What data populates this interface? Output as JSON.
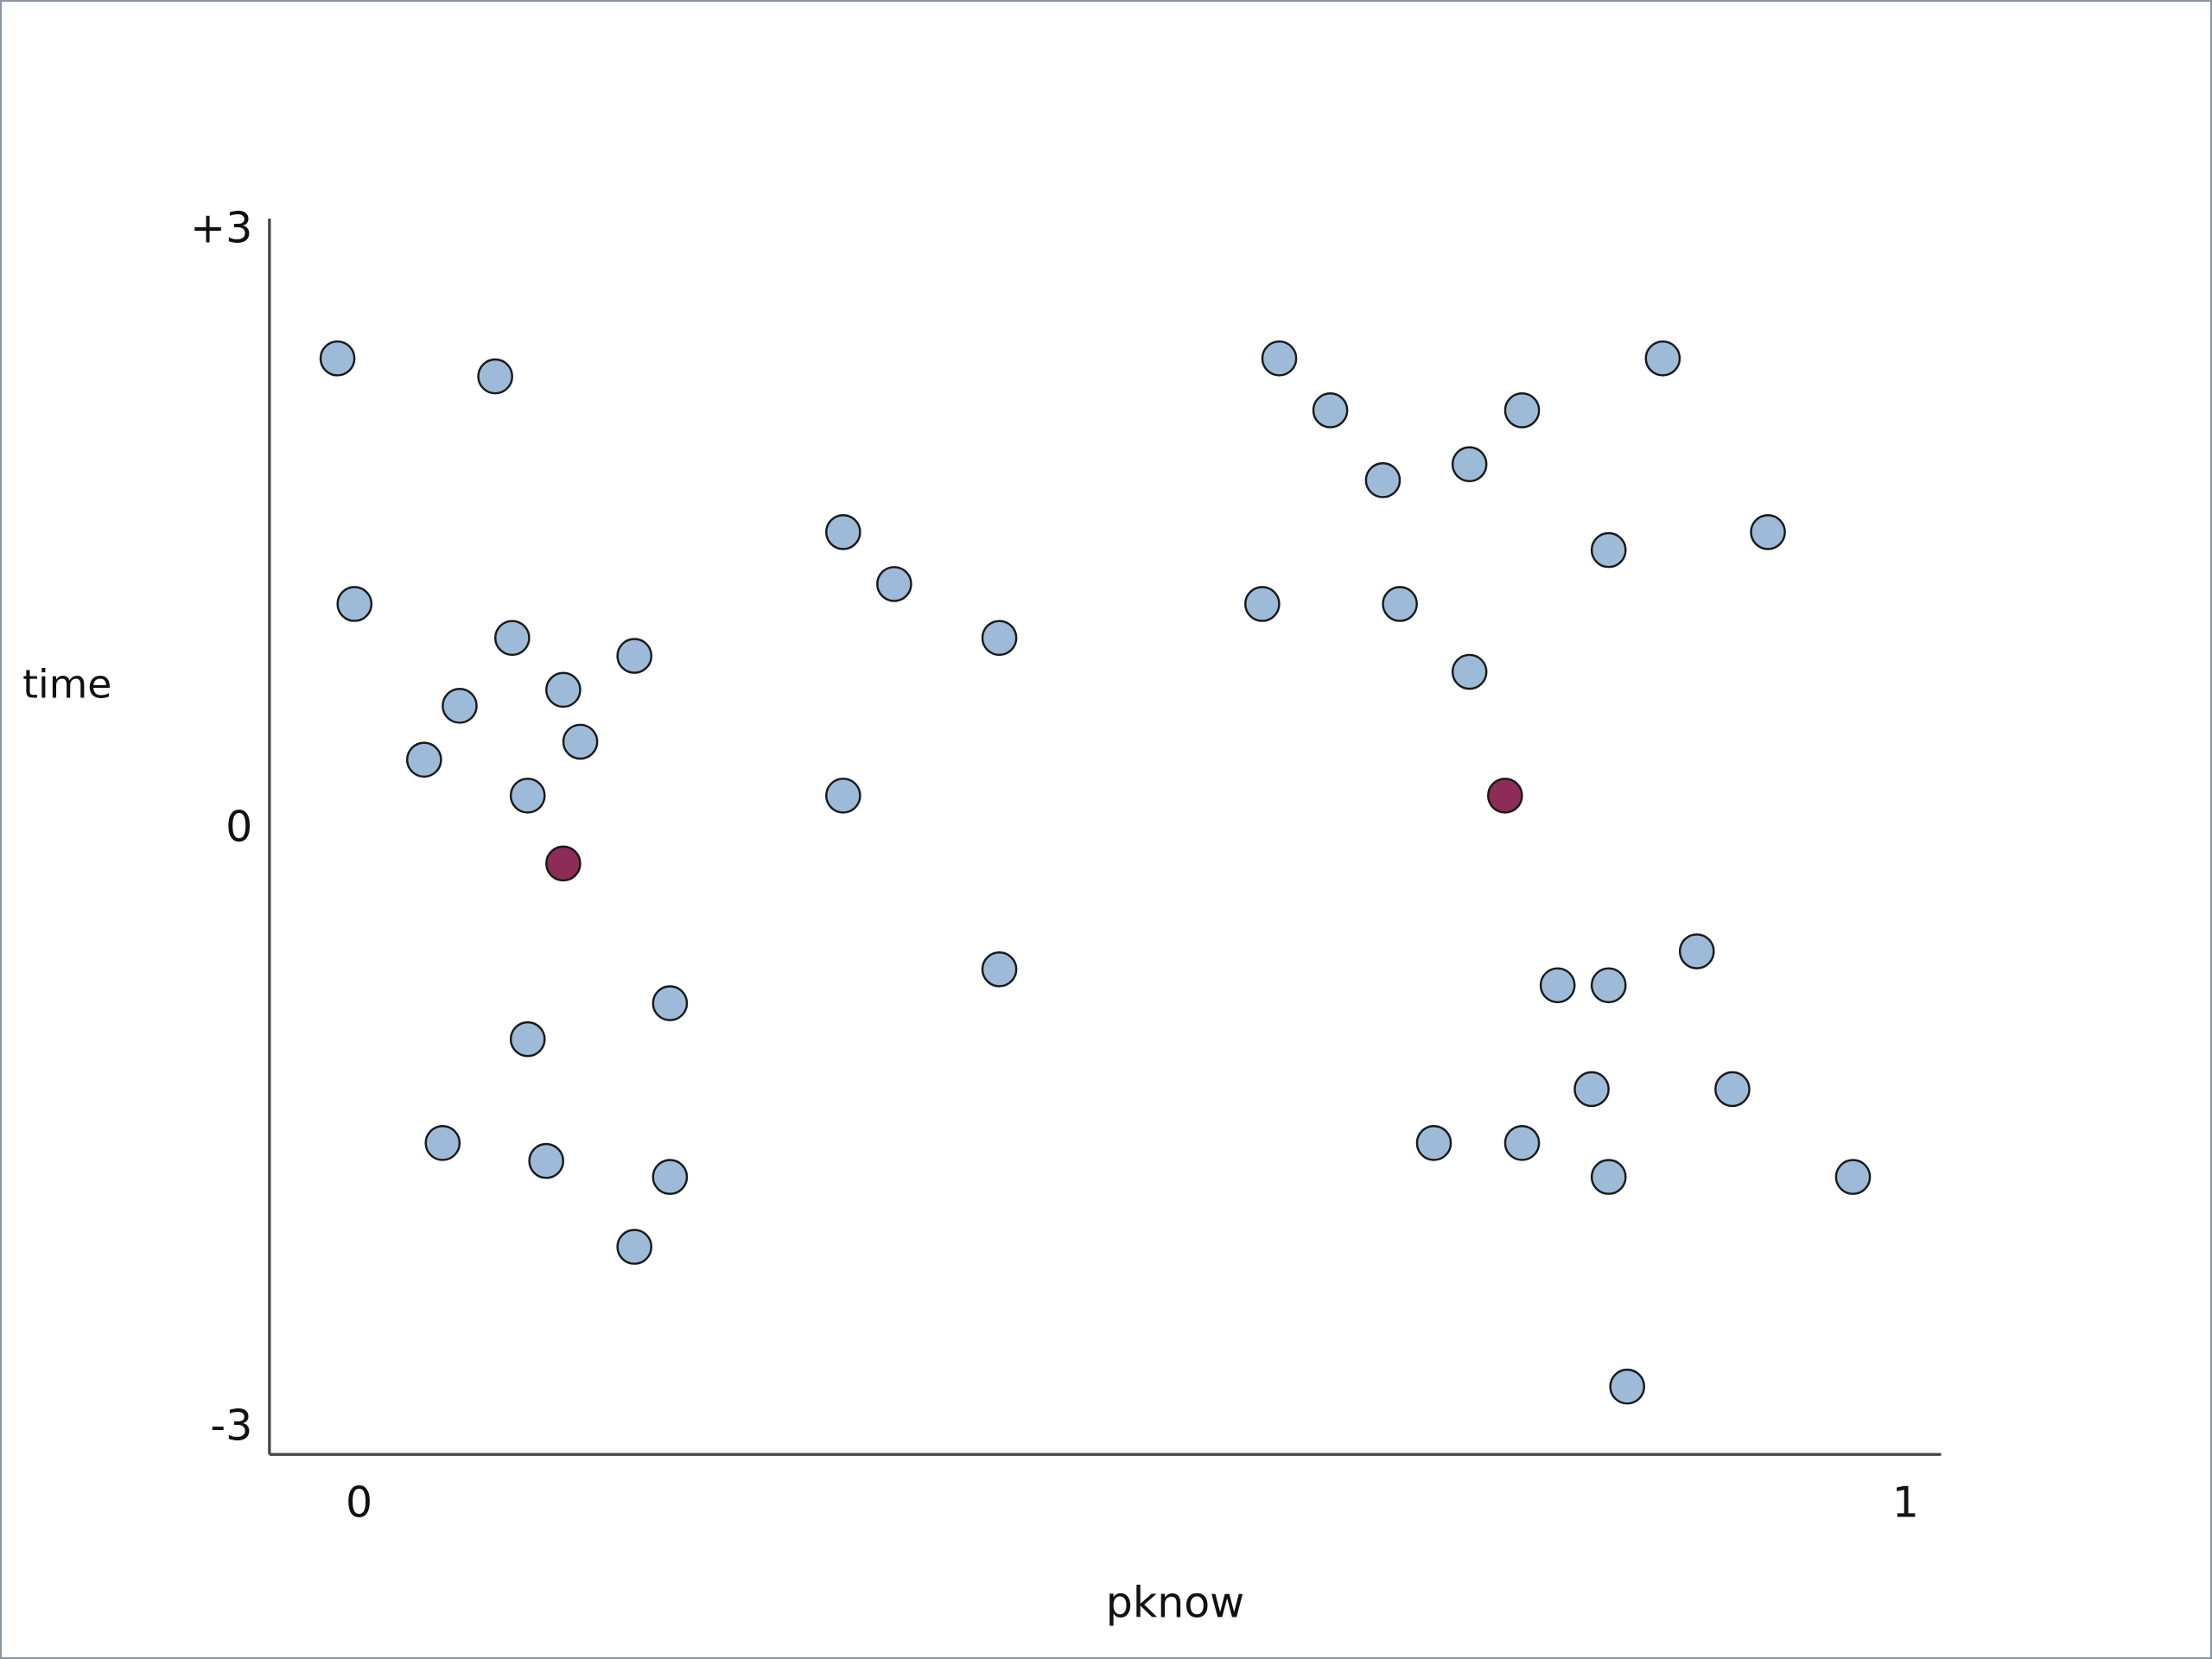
{
  "chart_data": {
    "type": "scatter",
    "x_label": "pknow",
    "y_label": "time",
    "xlim": [
      -0.058,
      1.023
    ],
    "ylim": [
      -3.13,
      3.06
    ],
    "xticks": [
      0,
      1
    ],
    "yticks": [
      {
        "value": 3,
        "label": "+3"
      },
      0,
      -3
    ],
    "series": [
      {
        "color": "#9dbbd8",
        "x": [
          -0.014,
          0.088,
          -0.003,
          0.099,
          0.178,
          0.065,
          0.132,
          0.143,
          0.042,
          0.109,
          0.313,
          0.346,
          0.414,
          0.313,
          0.414,
          0.201,
          0.109,
          0.054,
          0.121,
          0.201,
          0.178,
          0.595,
          0.628,
          0.752,
          0.843,
          0.662,
          0.718,
          0.808,
          0.911,
          0.584,
          0.673,
          0.718,
          0.865,
          0.775,
          0.808,
          0.797,
          0.888,
          0.695,
          0.752,
          0.808,
          0.966,
          0.82
        ],
        "values": [
          2.36,
          2.27,
          1.13,
          0.96,
          0.87,
          0.62,
          0.7,
          0.44,
          0.35,
          0.17,
          1.49,
          1.23,
          0.96,
          0.17,
          -0.7,
          -0.87,
          -1.05,
          -1.57,
          -1.66,
          -1.74,
          -2.09,
          2.36,
          2.1,
          2.1,
          2.36,
          1.75,
          1.83,
          1.4,
          1.49,
          1.13,
          1.13,
          0.79,
          -0.61,
          -0.78,
          -0.78,
          -1.3,
          -1.3,
          -1.57,
          -1.57,
          -1.74,
          -1.74,
          -2.79
        ]
      },
      {
        "color": "#8c2c57",
        "x": [
          0.132,
          0.741
        ],
        "values": [
          -0.17,
          0.17
        ]
      }
    ]
  }
}
